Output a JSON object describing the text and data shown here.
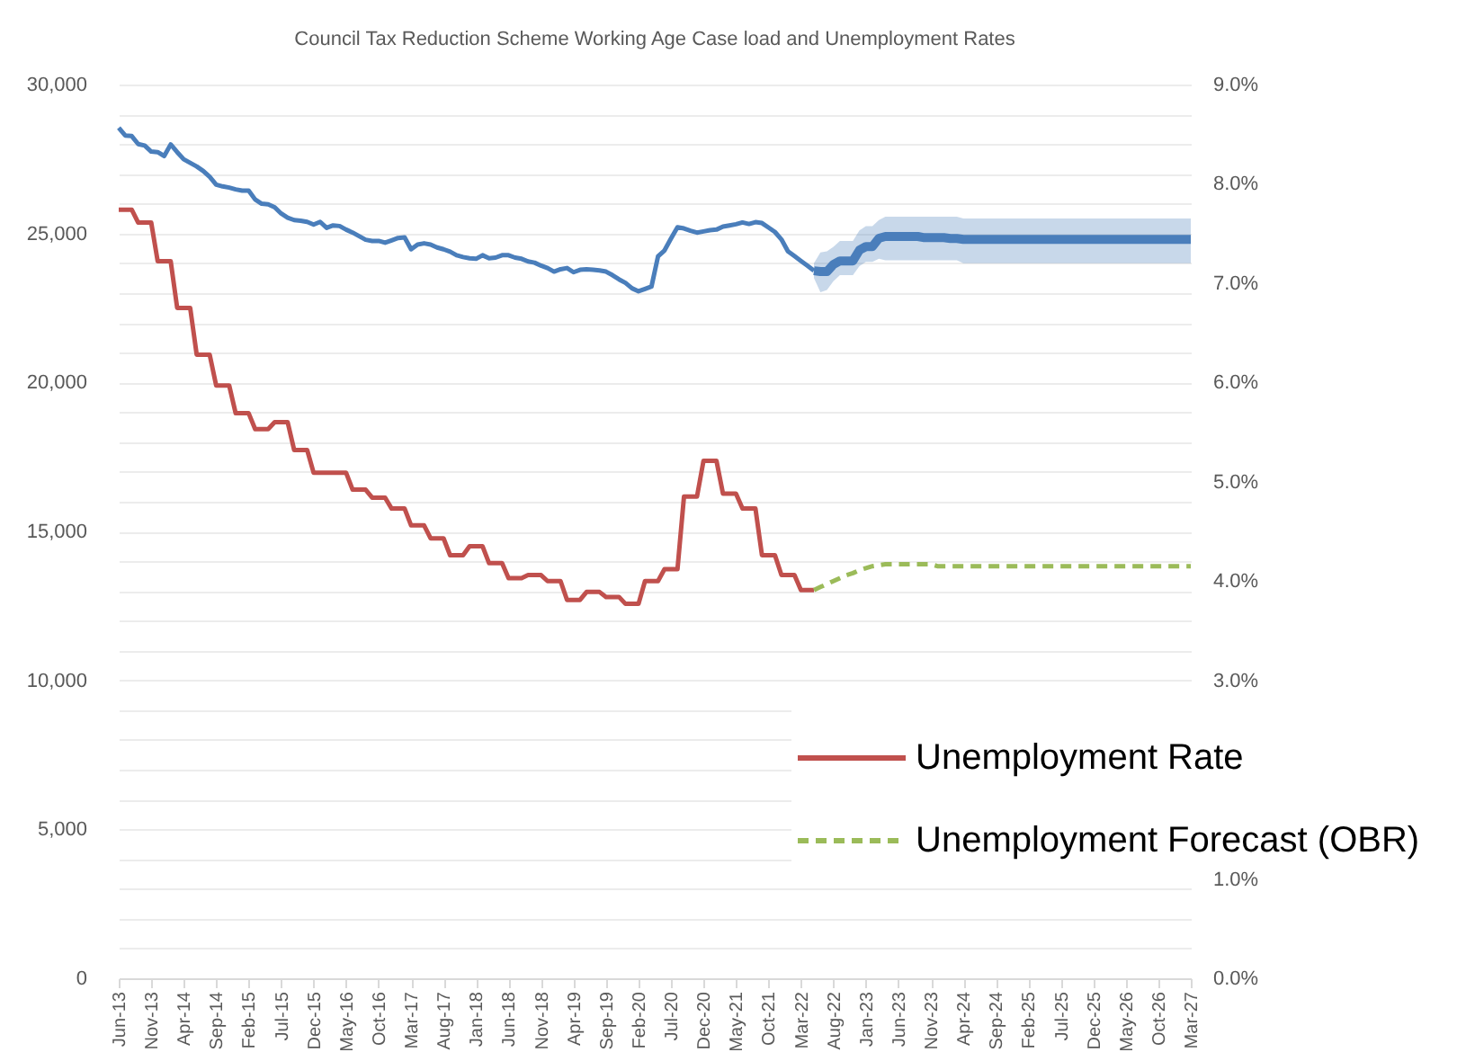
{
  "chart_data": {
    "type": "line",
    "title": "Council Tax Reduction Scheme Working Age Case load and Unemployment Rates",
    "categories": [
      "Jun-13",
      null,
      null,
      null,
      null,
      "Nov-13",
      null,
      null,
      null,
      null,
      "Apr-14",
      null,
      null,
      null,
      null,
      "Sep-14",
      null,
      null,
      null,
      null,
      "Feb-15",
      null,
      null,
      null,
      null,
      "Jul-15",
      null,
      null,
      null,
      null,
      "Dec-15",
      null,
      null,
      null,
      null,
      "May-16",
      null,
      null,
      null,
      null,
      "Oct-16",
      null,
      null,
      null,
      null,
      "Mar-17",
      null,
      null,
      null,
      null,
      "Aug-17",
      null,
      null,
      null,
      null,
      "Jan-18",
      null,
      null,
      null,
      null,
      "Jun-18",
      null,
      null,
      null,
      null,
      "Nov-18",
      null,
      null,
      null,
      null,
      "Apr-19",
      null,
      null,
      null,
      null,
      "Sep-19",
      null,
      null,
      null,
      null,
      "Feb-20",
      null,
      null,
      null,
      null,
      "Jul-20",
      null,
      null,
      null,
      null,
      "Dec-20",
      null,
      null,
      null,
      null,
      "May-21",
      null,
      null,
      null,
      null,
      "Oct-21",
      null,
      null,
      null,
      null,
      "Mar-22",
      null,
      null,
      null,
      null,
      "Aug-22",
      null,
      null,
      null,
      null,
      "Jan-23",
      null,
      null,
      null,
      null,
      "Jun-23",
      null,
      null,
      null,
      null,
      "Nov-23",
      null,
      null,
      null,
      null,
      "Apr-24",
      null,
      null,
      null,
      null,
      "Sep-24",
      null,
      null,
      null,
      null,
      "Feb-25",
      null,
      null,
      null,
      null,
      "Jul-25",
      null,
      null,
      null,
      null,
      "Dec-25",
      null,
      null,
      null,
      null,
      "May-26",
      null,
      null,
      null,
      null,
      "Oct-26",
      null,
      null,
      null,
      null,
      "Mar-27"
    ],
    "series": [
      {
        "color": "#4a7ebb",
        "values": [
          28550,
          28290,
          28270,
          28000,
          27950,
          27750,
          27730,
          27600,
          27990,
          27730,
          27490,
          27370,
          27250,
          27100,
          26900,
          26640,
          26580,
          26540,
          26480,
          26440,
          26440,
          26140,
          26000,
          25980,
          25880,
          25670,
          25530,
          25450,
          25430,
          25390,
          25300,
          25390,
          25190,
          25270,
          25250,
          25130,
          25030,
          24910,
          24790,
          24750,
          24750,
          24690,
          24770,
          24850,
          24870,
          24470,
          24630,
          24670,
          24630,
          24530,
          24470,
          24390,
          24270,
          24210,
          24170,
          24150,
          24270,
          24170,
          24190,
          24270,
          24270,
          24190,
          24150,
          24060,
          24020,
          23920,
          23840,
          23720,
          23800,
          23840,
          23700,
          23780,
          23800,
          23780,
          23760,
          23720,
          23600,
          23460,
          23340,
          23160,
          23060,
          23140,
          23220,
          24230,
          24430,
          24830,
          25210,
          25170,
          25090,
          25030,
          25070,
          25110,
          25130,
          25230,
          25270,
          25310,
          25370,
          25320,
          25380,
          25350,
          25200,
          25050,
          24800,
          24400,
          24240,
          24080,
          23920,
          23750,
          null,
          null,
          null,
          null,
          null,
          null,
          null,
          null,
          null,
          null,
          null,
          null,
          null,
          null,
          null,
          null,
          null,
          null,
          null,
          null,
          null,
          null,
          null,
          null,
          null,
          null,
          null,
          null,
          null,
          null,
          null,
          null,
          null,
          null,
          null,
          null,
          null,
          null,
          null,
          null,
          null,
          null,
          null,
          null,
          null,
          null,
          null,
          null,
          null,
          null,
          null,
          null,
          null,
          null,
          null,
          null,
          null,
          null
        ]
      },
      {
        "color": "#4a7ebb",
        "values": [
          null,
          null,
          null,
          null,
          null,
          null,
          null,
          null,
          null,
          null,
          null,
          null,
          null,
          null,
          null,
          null,
          null,
          null,
          null,
          null,
          null,
          null,
          null,
          null,
          null,
          null,
          null,
          null,
          null,
          null,
          null,
          null,
          null,
          null,
          null,
          null,
          null,
          null,
          null,
          null,
          null,
          null,
          null,
          null,
          null,
          null,
          null,
          null,
          null,
          null,
          null,
          null,
          null,
          null,
          null,
          null,
          null,
          null,
          null,
          null,
          null,
          null,
          null,
          null,
          null,
          null,
          null,
          null,
          null,
          null,
          null,
          null,
          null,
          null,
          null,
          null,
          null,
          null,
          null,
          null,
          null,
          null,
          null,
          null,
          null,
          null,
          null,
          null,
          null,
          null,
          null,
          null,
          null,
          null,
          null,
          null,
          null,
          null,
          null,
          null,
          null,
          null,
          null,
          null,
          null,
          null,
          null,
          23750,
          23720,
          23720,
          23960,
          24080,
          24080,
          24080,
          24440,
          24560,
          24560,
          24840,
          24900,
          24900,
          24900,
          24900,
          24900,
          24900,
          24860,
          24860,
          24860,
          24860,
          24830,
          24830,
          24800,
          24800,
          24800,
          24800,
          24800,
          24800,
          24800,
          24800,
          24800,
          24800,
          24800,
          24800,
          24800,
          24800,
          24800,
          24800,
          24800,
          24800,
          24800,
          24800,
          24800,
          24800,
          24800,
          24800,
          24800,
          24800,
          24800,
          24800,
          24800,
          24800,
          24800,
          24800,
          24800,
          24800,
          24800,
          24800
        ],
        "lower": [
          null,
          null,
          null,
          null,
          null,
          null,
          null,
          null,
          null,
          null,
          null,
          null,
          null,
          null,
          null,
          null,
          null,
          null,
          null,
          null,
          null,
          null,
          null,
          null,
          null,
          null,
          null,
          null,
          null,
          null,
          null,
          null,
          null,
          null,
          null,
          null,
          null,
          null,
          null,
          null,
          null,
          null,
          null,
          null,
          null,
          null,
          null,
          null,
          null,
          null,
          null,
          null,
          null,
          null,
          null,
          null,
          null,
          null,
          null,
          null,
          null,
          null,
          null,
          null,
          null,
          null,
          null,
          null,
          null,
          null,
          null,
          null,
          null,
          null,
          null,
          null,
          null,
          null,
          null,
          null,
          null,
          null,
          null,
          null,
          null,
          null,
          null,
          null,
          null,
          null,
          null,
          null,
          null,
          null,
          null,
          null,
          null,
          null,
          null,
          null,
          null,
          null,
          null,
          null,
          null,
          null,
          null,
          23500,
          23030,
          23100,
          23400,
          23600,
          23600,
          23600,
          23900,
          24050,
          24050,
          24150,
          24100,
          24100,
          24100,
          24100,
          24100,
          24100,
          24100,
          24100,
          24100,
          24100,
          24100,
          24100,
          24000,
          24000,
          24000,
          24000,
          24000,
          24000,
          24000,
          24000,
          24000,
          24000,
          24000,
          24000,
          24000,
          24000,
          24000,
          24000,
          24000,
          24000,
          24000,
          24000,
          24000,
          24000,
          24000,
          24000,
          24000,
          24000,
          24000,
          24000,
          24000,
          24000,
          24000,
          24000,
          24000,
          24000,
          24000,
          24000
        ],
        "upper": [
          null,
          null,
          null,
          null,
          null,
          null,
          null,
          null,
          null,
          null,
          null,
          null,
          null,
          null,
          null,
          null,
          null,
          null,
          null,
          null,
          null,
          null,
          null,
          null,
          null,
          null,
          null,
          null,
          null,
          null,
          null,
          null,
          null,
          null,
          null,
          null,
          null,
          null,
          null,
          null,
          null,
          null,
          null,
          null,
          null,
          null,
          null,
          null,
          null,
          null,
          null,
          null,
          null,
          null,
          null,
          null,
          null,
          null,
          null,
          null,
          null,
          null,
          null,
          null,
          null,
          null,
          null,
          null,
          null,
          null,
          null,
          null,
          null,
          null,
          null,
          null,
          null,
          null,
          null,
          null,
          null,
          null,
          null,
          null,
          null,
          null,
          null,
          null,
          null,
          null,
          null,
          null,
          null,
          null,
          null,
          null,
          null,
          null,
          null,
          null,
          null,
          null,
          null,
          null,
          null,
          null,
          null,
          24000,
          24360,
          24400,
          24550,
          24750,
          24750,
          24750,
          25100,
          25250,
          25250,
          25450,
          25560,
          25560,
          25560,
          25560,
          25560,
          25560,
          25560,
          25560,
          25560,
          25560,
          25560,
          25560,
          25500,
          25500,
          25500,
          25500,
          25500,
          25500,
          25500,
          25500,
          25500,
          25500,
          25500,
          25500,
          25500,
          25500,
          25500,
          25500,
          25500,
          25500,
          25500,
          25500,
          25500,
          25500,
          25500,
          25500,
          25500,
          25500,
          25500,
          25500,
          25500,
          25500,
          25500,
          25500,
          25500,
          25500,
          25500,
          25500
        ]
      },
      {
        "name": "Unemployment Rate",
        "color": "#c0504d",
        "axis": "y2",
        "values": [
          7.74,
          7.74,
          7.74,
          7.61,
          7.61,
          7.61,
          7.22,
          7.22,
          7.22,
          6.75,
          6.75,
          6.75,
          6.28,
          6.28,
          6.28,
          5.97,
          5.97,
          5.97,
          5.69,
          5.69,
          5.69,
          5.53,
          5.53,
          5.53,
          5.6,
          5.6,
          5.6,
          5.32,
          5.32,
          5.32,
          5.09,
          5.09,
          5.09,
          5.09,
          5.09,
          5.09,
          4.92,
          4.92,
          4.92,
          4.84,
          4.84,
          4.84,
          4.73,
          4.73,
          4.73,
          4.56,
          4.56,
          4.56,
          4.43,
          4.43,
          4.43,
          4.26,
          4.26,
          4.26,
          4.35,
          4.35,
          4.35,
          4.18,
          4.18,
          4.18,
          4.03,
          4.03,
          4.03,
          4.06,
          4.06,
          4.06,
          4.0,
          4.0,
          4.0,
          3.81,
          3.81,
          3.81,
          3.89,
          3.89,
          3.89,
          3.84,
          3.84,
          3.84,
          3.77,
          3.77,
          3.77,
          4.0,
          4.0,
          4.0,
          4.12,
          4.12,
          4.12,
          4.85,
          4.85,
          4.85,
          5.21,
          5.21,
          5.21,
          4.88,
          4.88,
          4.88,
          4.73,
          4.73,
          4.73,
          4.26,
          4.26,
          4.26,
          4.06,
          4.06,
          4.06,
          3.91,
          3.91,
          3.91,
          null,
          null,
          null,
          null,
          null,
          null,
          null,
          null,
          null,
          null,
          null,
          null,
          null,
          null,
          null,
          null,
          null,
          null,
          null,
          null,
          null,
          null,
          null,
          null,
          null,
          null,
          null,
          null,
          null,
          null,
          null,
          null,
          null,
          null,
          null,
          null,
          null,
          null,
          null,
          null,
          null,
          null,
          null,
          null,
          null,
          null,
          null,
          null,
          null,
          null,
          null,
          null,
          null,
          null,
          null,
          null,
          null,
          null
        ]
      },
      {
        "name": "Unemployment Forecast (OBR)",
        "color": "#9bbb59",
        "axis": "y2",
        "line_style": "dashed",
        "values": [
          null,
          null,
          null,
          null,
          null,
          null,
          null,
          null,
          null,
          null,
          null,
          null,
          null,
          null,
          null,
          null,
          null,
          null,
          null,
          null,
          null,
          null,
          null,
          null,
          null,
          null,
          null,
          null,
          null,
          null,
          null,
          null,
          null,
          null,
          null,
          null,
          null,
          null,
          null,
          null,
          null,
          null,
          null,
          null,
          null,
          null,
          null,
          null,
          null,
          null,
          null,
          null,
          null,
          null,
          null,
          null,
          null,
          null,
          null,
          null,
          null,
          null,
          null,
          null,
          null,
          null,
          null,
          null,
          null,
          null,
          null,
          null,
          null,
          null,
          null,
          null,
          null,
          null,
          null,
          null,
          null,
          null,
          null,
          null,
          null,
          null,
          null,
          null,
          null,
          null,
          null,
          null,
          null,
          null,
          null,
          null,
          null,
          null,
          null,
          null,
          null,
          null,
          null,
          null,
          null,
          null,
          null,
          3.91,
          3.94,
          3.97,
          4.0,
          4.03,
          4.06,
          4.08,
          4.11,
          4.13,
          4.15,
          4.16,
          4.17,
          4.17,
          4.17,
          4.17,
          4.17,
          4.17,
          4.17,
          4.17,
          4.15,
          4.15,
          4.15,
          4.15,
          4.15,
          4.15,
          4.15,
          4.15,
          4.15,
          4.15,
          4.15,
          4.15,
          4.15,
          4.15,
          4.15,
          4.15,
          4.15,
          4.15,
          4.15,
          4.15,
          4.15,
          4.15,
          4.15,
          4.15,
          4.15,
          4.15,
          4.15,
          4.15,
          4.15,
          4.15,
          4.15,
          4.15,
          4.15,
          4.15,
          4.15,
          4.15,
          4.15,
          4.15,
          4.15,
          4.15
        ]
      }
    ],
    "ylim": [
      0,
      30000
    ],
    "yticks": [
      0,
      {
        "value": 1000,
        "label": null
      },
      {
        "value": 2000,
        "label": null
      },
      {
        "value": 3000,
        "label": null
      },
      {
        "value": 4000,
        "label": null
      },
      {
        "value": 5000,
        "label": "5,000"
      },
      {
        "value": 6000,
        "label": null
      },
      {
        "value": 7000,
        "label": null
      },
      {
        "value": 8000,
        "label": null
      },
      {
        "value": 9000,
        "label": null
      },
      {
        "value": 10000,
        "label": "10,000"
      },
      {
        "value": 11000,
        "label": null
      },
      {
        "value": 12000,
        "label": null
      },
      {
        "value": 13000,
        "label": null
      },
      {
        "value": 14000,
        "label": null
      },
      {
        "value": 15000,
        "label": "15,000"
      },
      {
        "value": 16000,
        "label": null
      },
      {
        "value": 17000,
        "label": null
      },
      {
        "value": 18000,
        "label": null
      },
      {
        "value": 19000,
        "label": null
      },
      {
        "value": 20000,
        "label": "20,000"
      },
      {
        "value": 21000,
        "label": null
      },
      {
        "value": 22000,
        "label": null
      },
      {
        "value": 23000,
        "label": null
      },
      {
        "value": 24000,
        "label": null
      },
      {
        "value": 25000,
        "label": "25,000"
      },
      {
        "value": 26000,
        "label": null
      },
      {
        "value": 27000,
        "label": null
      },
      {
        "value": 28000,
        "label": null
      },
      {
        "value": 29000,
        "label": null
      },
      {
        "value": 30000,
        "label": "30,000"
      }
    ],
    "y2lim": [
      0,
      9
    ],
    "y2ticks": [
      {
        "value": 0,
        "label": "0.0%"
      },
      {
        "value": 1,
        "label": "1.0%"
      },
      {
        "value": 3,
        "label": "3.0%"
      },
      {
        "value": 4,
        "label": "4.0%"
      },
      {
        "value": 5,
        "label": "5.0%"
      },
      {
        "value": 6,
        "label": "6.0%"
      },
      {
        "value": 7,
        "label": "7.0%"
      },
      {
        "value": 8,
        "label": "8.0%"
      },
      {
        "value": 9,
        "label": "9.0%"
      }
    ],
    "grid": "y",
    "legend": "right"
  }
}
